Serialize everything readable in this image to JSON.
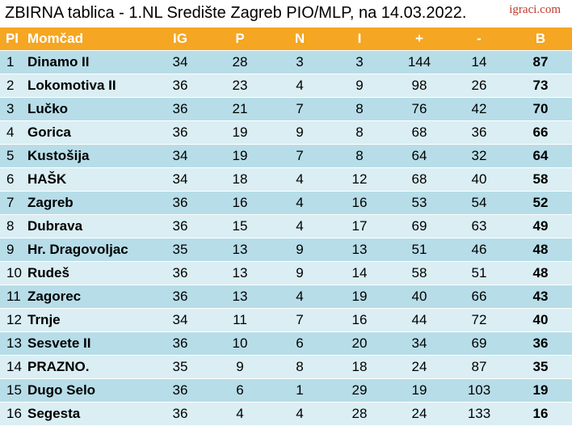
{
  "title": "ZBIRNA tablica - 1.NL Središte Zagreb PIO/MLP, na 14.03.2022.",
  "brand": "igraci.com",
  "headers": [
    "Pl",
    "Momčad",
    "IG",
    "P",
    "N",
    "I",
    "+",
    "-",
    "B"
  ],
  "rows": [
    [
      "1",
      "Dinamo II",
      "34",
      "28",
      "3",
      "3",
      "144",
      "14",
      "87"
    ],
    [
      "2",
      "Lokomotiva II",
      "36",
      "23",
      "4",
      "9",
      "98",
      "26",
      "73"
    ],
    [
      "3",
      "Lučko",
      "36",
      "21",
      "7",
      "8",
      "76",
      "42",
      "70"
    ],
    [
      "4",
      "Gorica",
      "36",
      "19",
      "9",
      "8",
      "68",
      "36",
      "66"
    ],
    [
      "5",
      "Kustošija",
      "34",
      "19",
      "7",
      "8",
      "64",
      "32",
      "64"
    ],
    [
      "6",
      "HAŠK",
      "34",
      "18",
      "4",
      "12",
      "68",
      "40",
      "58"
    ],
    [
      "7",
      "Zagreb",
      "36",
      "16",
      "4",
      "16",
      "53",
      "54",
      "52"
    ],
    [
      "8",
      "Dubrava",
      "36",
      "15",
      "4",
      "17",
      "69",
      "63",
      "49"
    ],
    [
      "9",
      "Hr. Dragovoljac",
      "35",
      "13",
      "9",
      "13",
      "51",
      "46",
      "48"
    ],
    [
      "10",
      "Rudeš",
      "36",
      "13",
      "9",
      "14",
      "58",
      "51",
      "48"
    ],
    [
      "11",
      "Zagorec",
      "36",
      "13",
      "4",
      "19",
      "40",
      "66",
      "43"
    ],
    [
      "12",
      "Trnje",
      "34",
      "11",
      "7",
      "16",
      "44",
      "72",
      "40"
    ],
    [
      "13",
      "Sesvete II",
      "36",
      "10",
      "6",
      "20",
      "34",
      "69",
      "36"
    ],
    [
      "14",
      "PRAZNO.",
      "35",
      "9",
      "8",
      "18",
      "24",
      "87",
      "35"
    ],
    [
      "15",
      "Dugo Selo",
      "36",
      "6",
      "1",
      "29",
      "19",
      "103",
      "19"
    ],
    [
      "16",
      "Segesta",
      "36",
      "4",
      "4",
      "28",
      "24",
      "133",
      "16"
    ]
  ]
}
